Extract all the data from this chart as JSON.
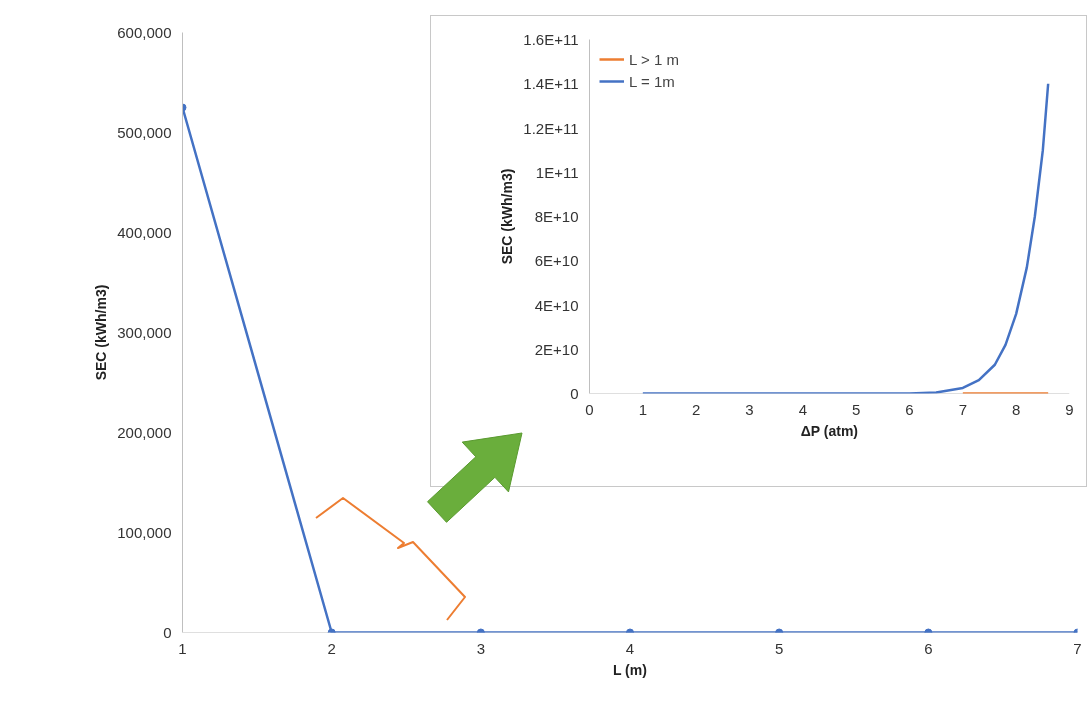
{
  "chart_data": [
    {
      "type": "line",
      "xlabel": "L (m)",
      "ylabel": "SEC (kWh/m3)",
      "x": [
        1,
        2,
        3,
        4,
        5,
        6,
        7
      ],
      "series": [
        {
          "color": "#4472c4",
          "values": [
            525000,
            0,
            0,
            0,
            0,
            0,
            0
          ]
        }
      ],
      "xlim": [
        1,
        7
      ],
      "xticks": [
        1,
        2,
        3,
        4,
        5,
        6,
        7
      ],
      "ylim": [
        0,
        600000
      ],
      "yticks": [
        {
          "value": 0,
          "label": "0"
        },
        {
          "value": 100000,
          "label": "100,000"
        },
        {
          "value": 200000,
          "label": "200,000"
        },
        {
          "value": 300000,
          "label": "300,000"
        },
        {
          "value": 400000,
          "label": "400,000"
        },
        {
          "value": 500000,
          "label": "500,000"
        },
        {
          "value": 600000,
          "label": "600,000"
        }
      ],
      "marker": "circle",
      "grid": false,
      "legend": false
    },
    {
      "type": "line",
      "xlabel": "ΔP (atm)",
      "ylabel": "SEC (kWh/m3)",
      "series": [
        {
          "name": "L > 1 m",
          "color": "#ed7d31",
          "x": [
            7,
            8,
            8.6
          ],
          "values": [
            0,
            0,
            0
          ]
        },
        {
          "name": "L = 1m",
          "color": "#4472c4",
          "x": [
            1,
            2,
            3,
            4,
            5,
            6,
            6.5,
            7,
            7.3,
            7.6,
            7.8,
            8,
            8.2,
            8.35,
            8.5,
            8.6
          ],
          "values": [
            0,
            0,
            0,
            0,
            0,
            0,
            500000000,
            2500000000,
            6000000000,
            13000000000,
            22000000000,
            36000000000,
            57000000000,
            80000000000,
            110000000000,
            140000000000
          ]
        }
      ],
      "xlim": [
        0,
        9
      ],
      "xticks": [
        0,
        1,
        2,
        3,
        4,
        5,
        6,
        7,
        8,
        9
      ],
      "ylim": [
        0,
        160000000000
      ],
      "yticks": [
        {
          "value": 0,
          "label": "0"
        },
        {
          "value": 20000000000,
          "label": "2E+10"
        },
        {
          "value": 40000000000,
          "label": "4E+10"
        },
        {
          "value": 60000000000,
          "label": "6E+10"
        },
        {
          "value": 80000000000,
          "label": "8E+10"
        },
        {
          "value": 100000000000,
          "label": "1E+11"
        },
        {
          "value": 120000000000,
          "label": "1.2E+11"
        },
        {
          "value": 140000000000,
          "label": "1.4E+11"
        },
        {
          "value": 160000000000,
          "label": "1.6E+11"
        }
      ],
      "marker": "none",
      "grid": false,
      "legend": "top left"
    }
  ]
}
